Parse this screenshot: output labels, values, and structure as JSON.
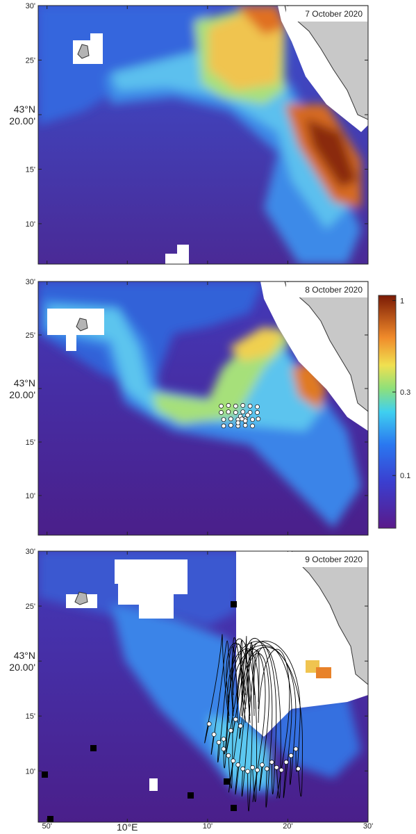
{
  "chart_data": [
    {
      "type": "map",
      "title": "7 October 2020",
      "xlim": [
        9.815,
        10.5
      ],
      "ylim": [
        43.105,
        43.5
      ],
      "xticks": [
        9.8333,
        10,
        10.1667,
        10.3333,
        10.5
      ],
      "yticks": [
        {
          "value": 43.5,
          "label": "30'"
        },
        {
          "value": 43.4167,
          "label": "25'"
        },
        {
          "value": 43.3333,
          "label": "43°N 20.00'"
        },
        {
          "value": 43.25,
          "label": "15'"
        },
        {
          "value": 43.1667,
          "label": "10'"
        }
      ]
    },
    {
      "type": "map",
      "title": "8 October 2020",
      "xlim": [
        9.815,
        10.5
      ],
      "ylim": [
        43.105,
        43.5
      ],
      "xticks": [
        9.8333,
        10,
        10.1667,
        10.3333,
        10.5
      ],
      "yticks": [
        {
          "value": 43.5,
          "label": "30'"
        },
        {
          "value": 43.4167,
          "label": "25'"
        },
        {
          "value": 43.3333,
          "label": "43°N 20.00'"
        },
        {
          "value": 43.25,
          "label": "15'"
        },
        {
          "value": 43.1667,
          "label": "10'"
        }
      ],
      "drifters": {
        "lon": [
          10.195,
          10.21,
          10.225,
          10.24,
          10.255,
          10.27,
          10.195,
          10.21,
          10.225,
          10.24,
          10.255,
          10.27,
          10.2,
          10.215,
          10.23,
          10.245,
          10.26,
          10.272,
          10.2,
          10.215,
          10.23,
          10.245,
          10.26,
          10.235,
          10.245,
          10.23,
          10.25,
          10.238
        ],
        "lat": [
          43.306,
          43.307,
          43.306,
          43.307,
          43.306,
          43.305,
          43.296,
          43.297,
          43.296,
          43.297,
          43.296,
          43.296,
          43.285,
          43.286,
          43.285,
          43.286,
          43.285,
          43.286,
          43.275,
          43.276,
          43.275,
          43.276,
          43.275,
          43.29,
          43.283,
          43.28,
          43.292,
          43.286
        ]
      },
      "colorbar": {
        "scale": "log",
        "lim": [
          0.05,
          1.07
        ],
        "ticks": [
          0.1,
          0.3,
          1
        ]
      }
    },
    {
      "type": "map",
      "title": "9 October 2020",
      "xlim": [
        9.815,
        10.5
      ],
      "ylim": [
        43.089,
        43.5
      ],
      "xticks": [
        {
          "value": 9.8333,
          "label": "50'"
        },
        {
          "value": 10,
          "label": "10°E"
        },
        {
          "value": 10.1667,
          "label": "10'"
        },
        {
          "value": 10.3333,
          "label": "20'"
        },
        {
          "value": 10.5,
          "label": "30'"
        }
      ],
      "yticks": [
        {
          "value": 43.5,
          "label": "30'"
        },
        {
          "value": 43.4167,
          "label": "25'"
        },
        {
          "value": 43.3333,
          "label": "43°N 20.00'"
        },
        {
          "value": 43.25,
          "label": "15'"
        },
        {
          "value": 43.1667,
          "label": "10'"
        }
      ],
      "drifters": {
        "lon": [
          10.17,
          10.18,
          10.19,
          10.2,
          10.21,
          10.22,
          10.23,
          10.24,
          10.25,
          10.26,
          10.27,
          10.28,
          10.29,
          10.3,
          10.31,
          10.32,
          10.33,
          10.34,
          10.35,
          10.355,
          10.215,
          10.225,
          10.235,
          10.2
        ],
        "lat": [
          43.238,
          43.222,
          43.21,
          43.2,
          43.19,
          43.182,
          43.176,
          43.17,
          43.166,
          43.172,
          43.168,
          43.176,
          43.17,
          43.18,
          43.172,
          43.168,
          43.18,
          43.19,
          43.2,
          43.17,
          43.228,
          43.245,
          43.235,
          43.215
        ]
      }
    }
  ]
}
